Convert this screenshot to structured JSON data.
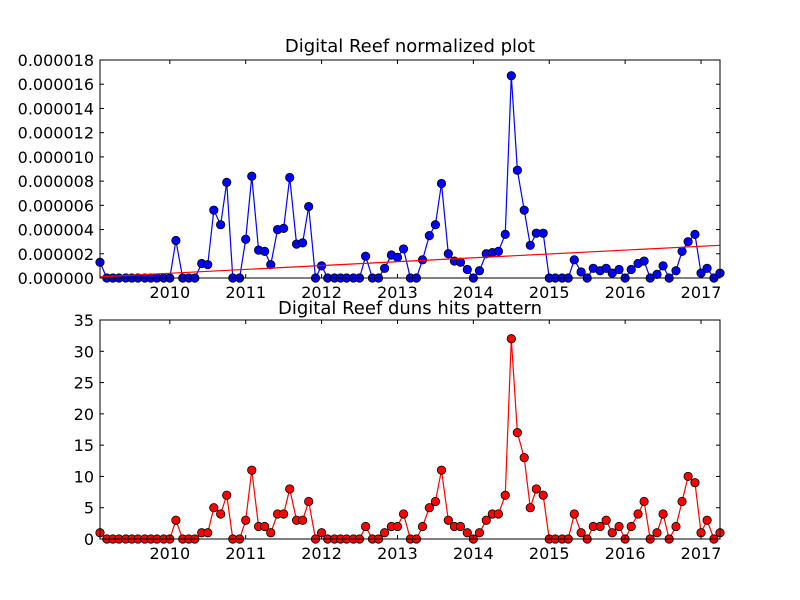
{
  "chart_data": [
    {
      "type": "line",
      "title": "Digital Reef normalized plot",
      "xlabel": "",
      "ylabel": "",
      "xlim": [
        2009.08,
        2017.25
      ],
      "ylim": [
        0,
        1.8e-05
      ],
      "xticks": [
        "2010",
        "2011",
        "2012",
        "2013",
        "2014",
        "2015",
        "2016",
        "2017"
      ],
      "yticks": [
        "0.000000",
        "0.000002",
        "0.000004",
        "0.000006",
        "0.000008",
        "0.000010",
        "0.000012",
        "0.000014",
        "0.000016",
        "0.000018"
      ],
      "grid": false,
      "legend": "none",
      "series": [
        {
          "color": "#0000ff",
          "marker": "circle",
          "x": [
            2009.08,
            2009.17,
            2009.25,
            2009.33,
            2009.42,
            2009.5,
            2009.58,
            2009.67,
            2009.75,
            2009.83,
            2009.92,
            2010.0,
            2010.08,
            2010.17,
            2010.25,
            2010.33,
            2010.42,
            2010.5,
            2010.58,
            2010.67,
            2010.75,
            2010.83,
            2010.92,
            2011.0,
            2011.08,
            2011.17,
            2011.25,
            2011.33,
            2011.42,
            2011.5,
            2011.58,
            2011.67,
            2011.75,
            2011.83,
            2011.92,
            2012.0,
            2012.08,
            2012.17,
            2012.25,
            2012.33,
            2012.42,
            2012.5,
            2012.58,
            2012.67,
            2012.75,
            2012.83,
            2012.92,
            2013.0,
            2013.08,
            2013.17,
            2013.25,
            2013.33,
            2013.42,
            2013.5,
            2013.58,
            2013.67,
            2013.75,
            2013.83,
            2013.92,
            2014.0,
            2014.08,
            2014.17,
            2014.25,
            2014.33,
            2014.42,
            2014.5,
            2014.58,
            2014.67,
            2014.75,
            2014.83,
            2014.92,
            2015.0,
            2015.08,
            2015.17,
            2015.25,
            2015.33,
            2015.42,
            2015.5,
            2015.58,
            2015.67,
            2015.75,
            2015.83,
            2015.92,
            2016.0,
            2016.08,
            2016.17,
            2016.25,
            2016.33,
            2016.42,
            2016.5,
            2016.58,
            2016.67,
            2016.75,
            2016.83,
            2016.92,
            2017.0,
            2017.08,
            2017.17,
            2017.25
          ],
          "y": [
            1.3e-06,
            0,
            0,
            0,
            0,
            0,
            0,
            0,
            0,
            0,
            0,
            0,
            3.1e-06,
            0,
            0,
            0,
            1.2e-06,
            1.1e-06,
            5.6e-06,
            4.4e-06,
            7.9e-06,
            0,
            0,
            3.2e-06,
            8.4e-06,
            2.3e-06,
            2.2e-06,
            1.1e-06,
            4e-06,
            4.1e-06,
            8.3e-06,
            2.8e-06,
            2.9e-06,
            5.9e-06,
            0,
            1e-06,
            0,
            0,
            0,
            0,
            0,
            0,
            1.8e-06,
            0,
            0,
            8e-07,
            1.9e-06,
            1.7e-06,
            2.4e-06,
            0,
            0,
            1.5e-06,
            3.5e-06,
            4.4e-06,
            7.8e-06,
            2e-06,
            1.4e-06,
            1.3e-06,
            7e-07,
            0,
            6e-07,
            2e-06,
            2.1e-06,
            2.2e-06,
            3.6e-06,
            1.67e-05,
            8.9e-06,
            5.6e-06,
            2.7e-06,
            3.7e-06,
            3.7e-06,
            0,
            0,
            0,
            0,
            1.5e-06,
            5e-07,
            0,
            8e-07,
            6e-07,
            8e-07,
            4e-07,
            7e-07,
            0,
            7e-07,
            1.2e-06,
            1.4e-06,
            0,
            3e-07,
            1e-06,
            0,
            6e-07,
            2.2e-06,
            3e-06,
            3.6e-06,
            4e-07,
            8e-07,
            0,
            4e-07
          ]
        },
        {
          "color": "#ff0000",
          "marker": "none",
          "x": [
            2009.08,
            2017.25
          ],
          "y": [
            1e-07,
            2.7e-06
          ]
        }
      ]
    },
    {
      "type": "line",
      "title": "Digital Reef duns hits pattern",
      "xlabel": "",
      "ylabel": "",
      "xlim": [
        2009.08,
        2017.25
      ],
      "ylim": [
        0,
        35
      ],
      "xticks": [
        "2010",
        "2011",
        "2012",
        "2013",
        "2014",
        "2015",
        "2016",
        "2017"
      ],
      "yticks": [
        "0",
        "5",
        "10",
        "15",
        "20",
        "25",
        "30",
        "35"
      ],
      "grid": false,
      "legend": "none",
      "series": [
        {
          "color": "#ff0000",
          "marker": "circle",
          "x": [
            2009.08,
            2009.17,
            2009.25,
            2009.33,
            2009.42,
            2009.5,
            2009.58,
            2009.67,
            2009.75,
            2009.83,
            2009.92,
            2010.0,
            2010.08,
            2010.17,
            2010.25,
            2010.33,
            2010.42,
            2010.5,
            2010.58,
            2010.67,
            2010.75,
            2010.83,
            2010.92,
            2011.0,
            2011.08,
            2011.17,
            2011.25,
            2011.33,
            2011.42,
            2011.5,
            2011.58,
            2011.67,
            2011.75,
            2011.83,
            2011.92,
            2012.0,
            2012.08,
            2012.17,
            2012.25,
            2012.33,
            2012.42,
            2012.5,
            2012.58,
            2012.67,
            2012.75,
            2012.83,
            2012.92,
            2013.0,
            2013.08,
            2013.17,
            2013.25,
            2013.33,
            2013.42,
            2013.5,
            2013.58,
            2013.67,
            2013.75,
            2013.83,
            2013.92,
            2014.0,
            2014.08,
            2014.17,
            2014.25,
            2014.33,
            2014.42,
            2014.5,
            2014.58,
            2014.67,
            2014.75,
            2014.83,
            2014.92,
            2015.0,
            2015.08,
            2015.17,
            2015.25,
            2015.33,
            2015.42,
            2015.5,
            2015.58,
            2015.67,
            2015.75,
            2015.83,
            2015.92,
            2016.0,
            2016.08,
            2016.17,
            2016.25,
            2016.33,
            2016.42,
            2016.5,
            2016.58,
            2016.67,
            2016.75,
            2016.83,
            2016.92,
            2017.0,
            2017.08,
            2017.17,
            2017.25
          ],
          "y": [
            1,
            0,
            0,
            0,
            0,
            0,
            0,
            0,
            0,
            0,
            0,
            0,
            3,
            0,
            0,
            0,
            1,
            1,
            5,
            4,
            7,
            0,
            0,
            3,
            11,
            2,
            2,
            1,
            4,
            4,
            8,
            3,
            3,
            6,
            0,
            1,
            0,
            0,
            0,
            0,
            0,
            0,
            2,
            0,
            0,
            1,
            2,
            2,
            4,
            0,
            0,
            2,
            5,
            6,
            11,
            3,
            2,
            2,
            1,
            0,
            1,
            3,
            4,
            4,
            7,
            32,
            17,
            13,
            5,
            8,
            7,
            0,
            0,
            0,
            0,
            4,
            1,
            0,
            2,
            2,
            3,
            1,
            2,
            0,
            2,
            4,
            6,
            0,
            1,
            4,
            0,
            2,
            6,
            10,
            9,
            1,
            3,
            0,
            1
          ]
        }
      ]
    }
  ]
}
